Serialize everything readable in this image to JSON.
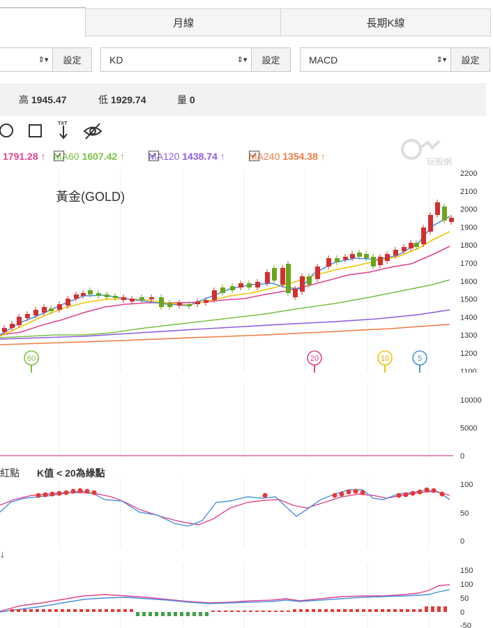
{
  "tabs": [
    {
      "label": ""
    },
    {
      "label": "月線"
    },
    {
      "label": "長期K線"
    }
  ],
  "selectors": [
    {
      "value": "",
      "button": "設定"
    },
    {
      "value": "KD",
      "button": "設定"
    },
    {
      "value": "MACD",
      "button": "設定"
    }
  ],
  "stats": {
    "high_label": "高",
    "high": "1945.47",
    "low_label": "低",
    "low": "1929.74",
    "vol_label": "量",
    "vol": "0"
  },
  "ma": [
    {
      "label": "",
      "value": "1791.28",
      "arrow": "↑",
      "color": "#e0438f"
    },
    {
      "label": "MA60",
      "value": "1607.42",
      "arrow": "↑",
      "color": "#7bc043"
    },
    {
      "label": "MA120",
      "value": "1438.74",
      "arrow": "↑",
      "color": "#8e5ee0"
    },
    {
      "label": "MA240",
      "value": "1354.38",
      "arrow": "↑",
      "color": "#f07c43"
    }
  ],
  "chart_title": "黃金(GOLD)",
  "watermark": "玩股網",
  "price_axis": [
    "2200",
    "2100",
    "2000",
    "1900",
    "1800",
    "1700",
    "1600",
    "1500",
    "1400",
    "1300",
    "1200",
    "1100"
  ],
  "markers": [
    {
      "text": "60",
      "color": "#7bc043"
    },
    {
      "text": "20",
      "color": "#e0438f"
    },
    {
      "text": "10",
      "color": "#f2c200"
    },
    {
      "text": "5",
      "color": "#4a90e2"
    }
  ],
  "volume_axis": [
    "10000",
    "5000",
    "0"
  ],
  "kd_label_left": "紅點",
  "kd_label": "K值 < 20為綠點",
  "kd_axis": [
    "100",
    "50",
    "0"
  ],
  "macd_label": "↓",
  "macd_axis": [
    "150",
    "100",
    "50",
    "0",
    "-50"
  ]
}
